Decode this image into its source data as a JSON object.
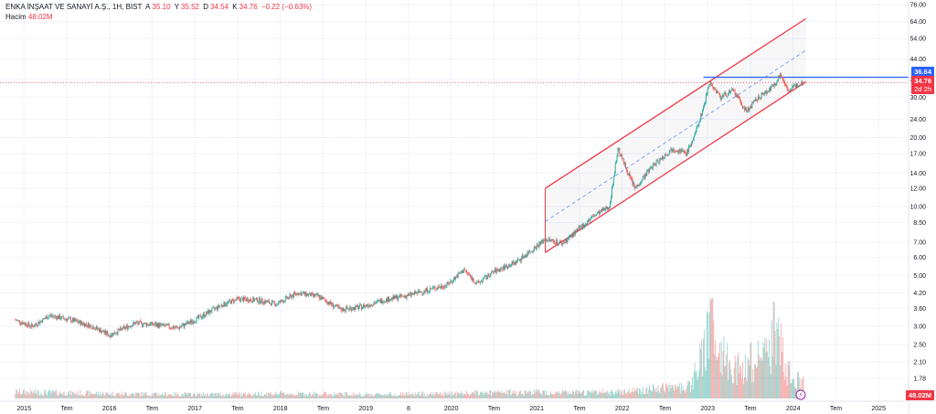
{
  "header": {
    "symbol": "ENKA İNŞAAT VE SANAYİ A.Ş., 1H, BIST",
    "open_label": "A",
    "open": "35.10",
    "high_label": "Y",
    "high": "35.52",
    "low_label": "D",
    "low": "34.54",
    "close_label": "K",
    "close": "34.76",
    "change": "−0.22 (−0.63%)"
  },
  "volume": {
    "label": "Hacim",
    "value": "48.02M"
  },
  "tags": {
    "resistance": "36.64",
    "last_price": "34.76",
    "countdown": "2d 2h",
    "volume": "48.02M"
  },
  "colors": {
    "up": "#26a69a",
    "down": "#ef5350",
    "channel": "#f23645",
    "resistance": "#2962ff",
    "grid": "#f0f3fa",
    "text": "#131722"
  },
  "chart_data": {
    "type": "candlestick",
    "y_scale": "log",
    "y_ticks": [
      "76.00",
      "64.00",
      "54.00",
      "44.00",
      "36.00",
      "30.00",
      "24.00",
      "20.00",
      "17.00",
      "14.00",
      "12.00",
      "10.00",
      "8.50",
      "7.00",
      "6.00",
      "5.00",
      "4.20",
      "3.60",
      "3.00",
      "2.50",
      "2.10",
      "1.78"
    ],
    "x_ticks": [
      "2015",
      "Tem",
      "2016",
      "Tem",
      "2017",
      "Tem",
      "2018",
      "Tem",
      "2019",
      "8",
      "2020",
      "Tem",
      "2021",
      "Tem",
      "2022",
      "Tem",
      "2023",
      "Tem",
      "2024",
      "Tem",
      "2025"
    ],
    "price_path": [
      [
        2014.9,
        3.2
      ],
      [
        2015.1,
        3.0
      ],
      [
        2015.3,
        3.35
      ],
      [
        2015.55,
        3.2
      ],
      [
        2015.8,
        3.0
      ],
      [
        2016.0,
        2.75
      ],
      [
        2016.3,
        3.1
      ],
      [
        2016.55,
        3.05
      ],
      [
        2016.8,
        2.95
      ],
      [
        2017.0,
        3.2
      ],
      [
        2017.3,
        3.7
      ],
      [
        2017.5,
        3.95
      ],
      [
        2017.75,
        3.9
      ],
      [
        2017.95,
        3.75
      ],
      [
        2018.2,
        4.2
      ],
      [
        2018.45,
        4.05
      ],
      [
        2018.7,
        3.55
      ],
      [
        2018.95,
        3.65
      ],
      [
        2019.2,
        3.9
      ],
      [
        2019.5,
        4.1
      ],
      [
        2019.75,
        4.35
      ],
      [
        2019.95,
        4.55
      ],
      [
        2020.15,
        5.3
      ],
      [
        2020.3,
        4.6
      ],
      [
        2020.5,
        5.2
      ],
      [
        2020.75,
        5.7
      ],
      [
        2020.95,
        6.5
      ],
      [
        2021.1,
        7.2
      ],
      [
        2021.3,
        6.9
      ],
      [
        2021.5,
        8.0
      ],
      [
        2021.65,
        9.0
      ],
      [
        2021.85,
        10.0
      ],
      [
        2021.95,
        18.0
      ],
      [
        2022.05,
        14.5
      ],
      [
        2022.15,
        12.0
      ],
      [
        2022.35,
        15.0
      ],
      [
        2022.6,
        18.0
      ],
      [
        2022.75,
        17.0
      ],
      [
        2022.85,
        20.5
      ],
      [
        2022.95,
        27.0
      ],
      [
        2023.02,
        35.0
      ],
      [
        2023.15,
        30.0
      ],
      [
        2023.3,
        32.0
      ],
      [
        2023.45,
        26.0
      ],
      [
        2023.6,
        30.0
      ],
      [
        2023.75,
        33.0
      ],
      [
        2023.85,
        37.5
      ],
      [
        2023.95,
        32.0
      ],
      [
        2024.05,
        34.0
      ],
      [
        2024.12,
        34.76
      ]
    ],
    "volume_path": [
      [
        2014.9,
        0.08
      ],
      [
        2016.0,
        0.06
      ],
      [
        2017.0,
        0.05
      ],
      [
        2018.0,
        0.06
      ],
      [
        2019.0,
        0.05
      ],
      [
        2020.0,
        0.06
      ],
      [
        2021.0,
        0.08
      ],
      [
        2021.5,
        0.07
      ],
      [
        2022.0,
        0.09
      ],
      [
        2022.8,
        0.15
      ],
      [
        2022.95,
        0.55
      ],
      [
        2023.05,
        1.0
      ],
      [
        2023.15,
        0.6
      ],
      [
        2023.3,
        0.35
      ],
      [
        2023.5,
        0.45
      ],
      [
        2023.7,
        0.5
      ],
      [
        2023.8,
        0.9
      ],
      [
        2023.9,
        0.4
      ],
      [
        2024.1,
        0.18
      ]
    ],
    "channel": {
      "upper": [
        [
          2021.1,
          12.0
        ],
        [
          2024.15,
          66.0
        ]
      ],
      "mid": [
        [
          2021.1,
          8.6
        ],
        [
          2024.15,
          48.0
        ]
      ],
      "lower": [
        [
          2021.1,
          6.3
        ],
        [
          2024.15,
          35.0
        ]
      ]
    },
    "resistance_level": 36.64,
    "last_price": 34.76
  }
}
